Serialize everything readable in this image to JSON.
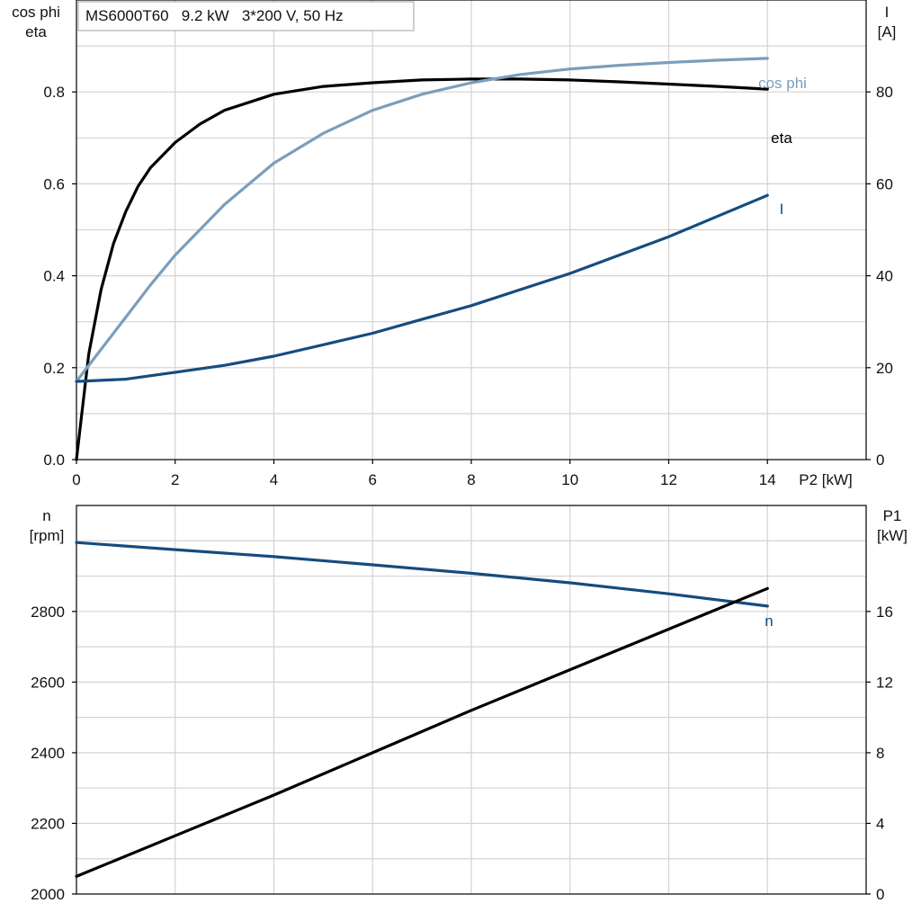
{
  "chart_data": [
    {
      "type": "line",
      "title": "MS6000T60   9.2 kW   3*200 V, 50 Hz",
      "xlabel": "P2 [kW]",
      "ylabel_left": [
        "cos phi",
        "eta"
      ],
      "ylabel_right": [
        "I",
        "[A]"
      ],
      "xlim": [
        0,
        16
      ],
      "ylim_left": [
        0,
        1.0
      ],
      "ylim_right": [
        0,
        100
      ],
      "x_ticks": [
        "0",
        "2",
        "4",
        "6",
        "8",
        "10",
        "12",
        "14"
      ],
      "y_left_ticks": [
        "0.0",
        "0.2",
        "0.4",
        "0.6",
        "0.8"
      ],
      "y_right_ticks": [
        "0",
        "20",
        "40",
        "60",
        "80"
      ],
      "grid": true,
      "series": [
        {
          "name": "eta",
          "axis": "left",
          "color": "#000000",
          "x": [
            0,
            0.25,
            0.5,
            0.75,
            1,
            1.25,
            1.5,
            2,
            2.5,
            3,
            4,
            5,
            6,
            7,
            8,
            9,
            10,
            11,
            12,
            13,
            14
          ],
          "y": [
            0.0,
            0.23,
            0.37,
            0.47,
            0.54,
            0.595,
            0.635,
            0.69,
            0.73,
            0.76,
            0.795,
            0.812,
            0.82,
            0.826,
            0.828,
            0.828,
            0.826,
            0.822,
            0.817,
            0.812,
            0.806
          ]
        },
        {
          "name": "cos phi",
          "axis": "left",
          "color": "#7b9ebc",
          "x": [
            0,
            0.5,
            1,
            1.5,
            2,
            3,
            4,
            5,
            6,
            7,
            8,
            9,
            10,
            11,
            12,
            13,
            14
          ],
          "y": [
            0.17,
            0.24,
            0.31,
            0.38,
            0.445,
            0.555,
            0.645,
            0.71,
            0.76,
            0.795,
            0.82,
            0.838,
            0.85,
            0.858,
            0.864,
            0.869,
            0.873
          ]
        },
        {
          "name": "I",
          "axis": "right",
          "color": "#154c7e",
          "x": [
            0,
            1,
            2,
            3,
            4,
            5,
            6,
            7,
            8,
            9,
            10,
            11,
            12,
            13,
            14
          ],
          "y": [
            17,
            17.5,
            19,
            20.5,
            22.5,
            25,
            27.5,
            30.5,
            33.5,
            37,
            40.5,
            44.5,
            48.5,
            53,
            57.5
          ]
        }
      ]
    },
    {
      "type": "line",
      "xlabel": "",
      "ylabel_left": [
        "n",
        "[rpm]"
      ],
      "ylabel_right": [
        "P1",
        "[kW]"
      ],
      "xlim": [
        0,
        16
      ],
      "ylim_left": [
        2000,
        3100
      ],
      "ylim_right": [
        0,
        22
      ],
      "y_left_ticks": [
        "2000",
        "2200",
        "2400",
        "2600",
        "2800"
      ],
      "y_right_ticks": [
        "0",
        "4",
        "8",
        "12",
        "16"
      ],
      "grid": true,
      "series": [
        {
          "name": "n",
          "axis": "left",
          "color": "#154c7e",
          "x": [
            0,
            2,
            4,
            6,
            8,
            10,
            12,
            14
          ],
          "y": [
            2995,
            2975,
            2955,
            2932,
            2908,
            2881,
            2850,
            2815
          ]
        },
        {
          "name": "",
          "axis": "right",
          "color": "#000000",
          "x": [
            0,
            2,
            4,
            6,
            8,
            10,
            12,
            14
          ],
          "y": [
            1.0,
            3.3,
            5.6,
            8.0,
            10.4,
            12.7,
            15.0,
            17.3
          ]
        }
      ]
    }
  ]
}
